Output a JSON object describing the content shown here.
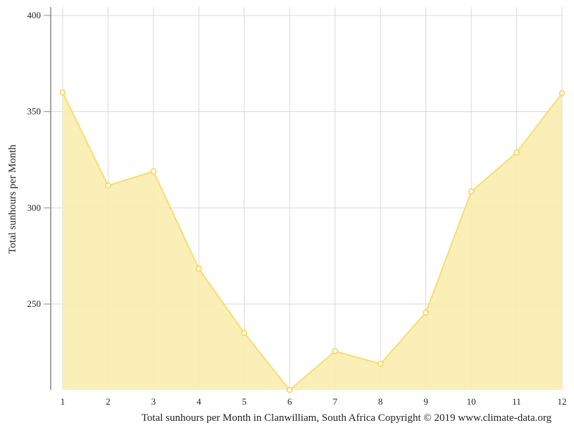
{
  "chart_data": {
    "type": "area",
    "title": "Total sunhours per Month in Clanwilliam, South Africa Copyright © 2019 www.climate-data.org",
    "xlabel": "Total sunhours per Month in Clanwilliam, South Africa Copyright © 2019 www.climate-data.org",
    "ylabel": "Total sunhours per Month",
    "categories": [
      "1",
      "2",
      "3",
      "4",
      "5",
      "6",
      "7",
      "8",
      "9",
      "10",
      "11",
      "12"
    ],
    "x": [
      1,
      2,
      3,
      4,
      5,
      6,
      7,
      8,
      9,
      10,
      11,
      12
    ],
    "series": [
      {
        "name": "Total sunhours per Month",
        "values": [
          360,
          311.6,
          319,
          268.4,
          235,
          205.3,
          225.5,
          218.9,
          245.6,
          308.5,
          328.8,
          359.6
        ],
        "color": "#f5d24a",
        "fill": "#faeeb0"
      }
    ],
    "yticks": [
      250,
      300,
      350,
      400
    ],
    "ylim": [
      205.3,
      404
    ],
    "xlim": [
      1,
      12
    ],
    "grid": true,
    "legend": "none"
  },
  "colors": {
    "line": "#f5d24a",
    "fill": "#faedae",
    "grid": "#d9d9d9",
    "axis": "#888888"
  }
}
